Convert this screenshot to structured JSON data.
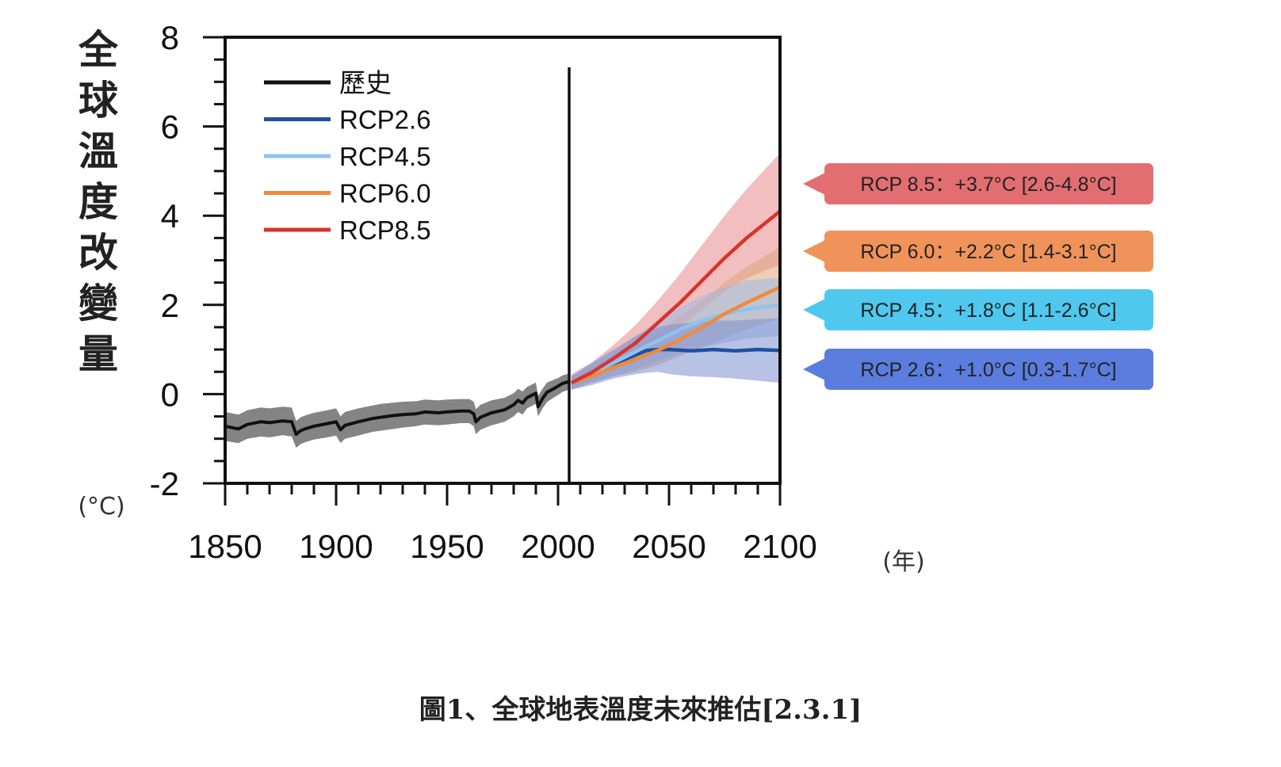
{
  "caption": "圖1、全球地表溫度未來推估[2.3.1]",
  "ylabel_chars": [
    "全",
    "球",
    "溫",
    "度",
    "改",
    "變",
    "量"
  ],
  "y_unit": "(°C)",
  "x_unit": "(年)",
  "chart_data": {
    "type": "line",
    "title": "",
    "ylabel": "全球溫度改變量",
    "y_unit": "(°C)",
    "xlabel": "",
    "x_unit": "(年)",
    "xlim": [
      1850,
      2100
    ],
    "ylim": [
      -2,
      8
    ],
    "x_ticks": [
      1850,
      1900,
      1950,
      2000,
      2050,
      2100
    ],
    "y_ticks": [
      -2,
      0,
      2,
      4,
      6,
      8
    ],
    "divider_year": 2005,
    "legend_position": "top-left",
    "series": [
      {
        "name": "歷史",
        "color": "#111111",
        "band_color": "#6e6e6e",
        "x": [
          1850,
          1856,
          1860,
          1866,
          1870,
          1876,
          1880,
          1882,
          1884,
          1886,
          1890,
          1896,
          1900,
          1902,
          1904,
          1910,
          1916,
          1920,
          1926,
          1930,
          1936,
          1940,
          1946,
          1950,
          1956,
          1960,
          1962,
          1963,
          1965,
          1970,
          1976,
          1980,
          1982,
          1984,
          1986,
          1990,
          1991,
          1993,
          1995,
          1998,
          2000,
          2002,
          2005
        ],
        "values": [
          -0.72,
          -0.78,
          -0.68,
          -0.62,
          -0.64,
          -0.6,
          -0.62,
          -0.9,
          -0.82,
          -0.78,
          -0.72,
          -0.66,
          -0.62,
          -0.8,
          -0.7,
          -0.62,
          -0.55,
          -0.52,
          -0.48,
          -0.46,
          -0.44,
          -0.4,
          -0.42,
          -0.4,
          -0.38,
          -0.38,
          -0.44,
          -0.62,
          -0.52,
          -0.42,
          -0.35,
          -0.24,
          -0.14,
          -0.2,
          -0.08,
          0.02,
          -0.28,
          -0.1,
          0.04,
          0.12,
          0.18,
          0.24,
          0.28
        ],
        "lower": [
          -1.05,
          -1.1,
          -1.0,
          -0.95,
          -0.97,
          -0.92,
          -0.95,
          -1.2,
          -1.12,
          -1.08,
          -1.02,
          -0.97,
          -0.93,
          -1.1,
          -1.0,
          -0.93,
          -0.85,
          -0.82,
          -0.78,
          -0.75,
          -0.72,
          -0.68,
          -0.7,
          -0.68,
          -0.65,
          -0.65,
          -0.72,
          -0.9,
          -0.8,
          -0.7,
          -0.62,
          -0.5,
          -0.4,
          -0.46,
          -0.32,
          -0.22,
          -0.5,
          -0.32,
          -0.18,
          -0.08,
          -0.02,
          0.05,
          0.1
        ],
        "upper": [
          -0.4,
          -0.46,
          -0.36,
          -0.3,
          -0.32,
          -0.28,
          -0.3,
          -0.6,
          -0.52,
          -0.48,
          -0.42,
          -0.36,
          -0.32,
          -0.5,
          -0.4,
          -0.32,
          -0.26,
          -0.22,
          -0.19,
          -0.17,
          -0.16,
          -0.12,
          -0.14,
          -0.12,
          -0.11,
          -0.11,
          -0.17,
          -0.34,
          -0.24,
          -0.14,
          -0.08,
          0.02,
          0.12,
          0.06,
          0.16,
          0.26,
          -0.04,
          0.12,
          0.26,
          0.32,
          0.36,
          0.42,
          0.46
        ]
      },
      {
        "name": "RCP2.6",
        "color": "#1f4fa0",
        "band_color": "#7d8fd0",
        "x": [
          2006,
          2015,
          2025,
          2035,
          2040,
          2045,
          2050,
          2060,
          2070,
          2080,
          2090,
          2100
        ],
        "values": [
          0.25,
          0.45,
          0.68,
          0.88,
          0.98,
          1.0,
          1.0,
          0.97,
          1.0,
          0.97,
          1.0,
          0.98
        ],
        "lower": [
          0.1,
          0.2,
          0.35,
          0.45,
          0.48,
          0.5,
          0.45,
          0.4,
          0.38,
          0.35,
          0.3,
          0.25
        ],
        "upper": [
          0.4,
          0.7,
          1.0,
          1.3,
          1.42,
          1.5,
          1.55,
          1.6,
          1.65,
          1.65,
          1.68,
          1.7
        ]
      },
      {
        "name": "RCP4.5",
        "color": "#8fc2ee",
        "band_color": "#9dbbe6",
        "x": [
          2006,
          2015,
          2025,
          2035,
          2045,
          2055,
          2065,
          2075,
          2085,
          2100
        ],
        "values": [
          0.25,
          0.45,
          0.7,
          0.95,
          1.2,
          1.45,
          1.65,
          1.8,
          1.9,
          2.0
        ],
        "lower": [
          0.1,
          0.25,
          0.4,
          0.55,
          0.75,
          0.9,
          1.05,
          1.15,
          1.25,
          1.3
        ],
        "upper": [
          0.4,
          0.65,
          0.95,
          1.3,
          1.65,
          1.95,
          2.2,
          2.4,
          2.55,
          2.6
        ]
      },
      {
        "name": "RCP6.0",
        "color": "#ef8a3a",
        "band_color": "#e2a47a",
        "x": [
          2006,
          2015,
          2025,
          2035,
          2045,
          2055,
          2065,
          2075,
          2085,
          2100
        ],
        "values": [
          0.25,
          0.4,
          0.6,
          0.78,
          0.98,
          1.22,
          1.5,
          1.8,
          2.05,
          2.4
        ],
        "lower": [
          0.1,
          0.25,
          0.4,
          0.5,
          0.65,
          0.85,
          1.05,
          1.25,
          1.45,
          1.7
        ],
        "upper": [
          0.4,
          0.6,
          0.85,
          1.1,
          1.4,
          1.75,
          2.1,
          2.5,
          2.85,
          3.3
        ]
      },
      {
        "name": "RCP8.5",
        "color": "#d9332b",
        "band_color": "#e8898a",
        "x": [
          2006,
          2015,
          2025,
          2035,
          2045,
          2055,
          2065,
          2075,
          2085,
          2100
        ],
        "values": [
          0.25,
          0.48,
          0.8,
          1.15,
          1.6,
          2.05,
          2.55,
          3.05,
          3.5,
          4.1
        ],
        "lower": [
          0.1,
          0.3,
          0.55,
          0.85,
          1.15,
          1.5,
          1.9,
          2.3,
          2.6,
          2.9
        ],
        "upper": [
          0.45,
          0.7,
          1.1,
          1.55,
          2.1,
          2.7,
          3.35,
          4.0,
          4.6,
          5.4
        ]
      }
    ],
    "annotations": [
      {
        "label": "RCP 8.5：+3.7°C [2.6-4.8°C]",
        "color": "#e26e72"
      },
      {
        "label": "RCP 6.0：+2.2°C [1.4-3.1°C]",
        "color": "#f0935a"
      },
      {
        "label": "RCP 4.5：+1.8°C [1.1-2.6°C]",
        "color": "#4ec8ee"
      },
      {
        "label": "RCP 2.6：+1.0°C [0.3-1.7°C]",
        "color": "#5b7ddf"
      }
    ]
  }
}
